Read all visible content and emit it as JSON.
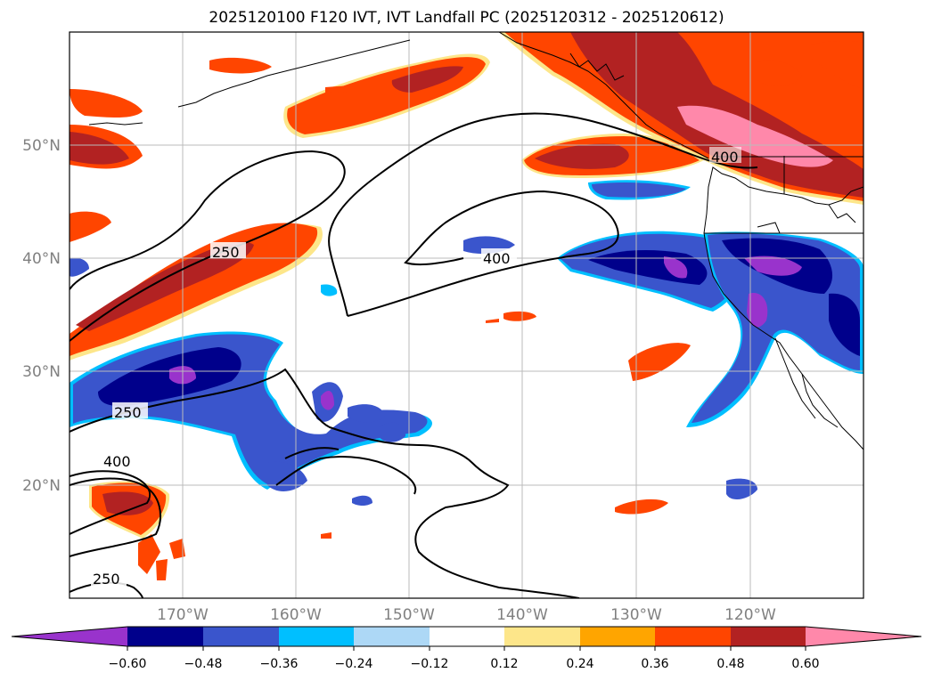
{
  "title": "2025120100 F120 IVT, IVT Landfall PC (2025120312 - 2025120612)",
  "lat_labels": [
    "50°N",
    "40°N",
    "30°N",
    "20°N"
  ],
  "lon_labels": [
    "170°W",
    "160°W",
    "150°W",
    "140°W",
    "130°W",
    "120°W"
  ],
  "contour_labels": [
    "250",
    "400",
    "250",
    "400",
    "250",
    "400"
  ],
  "colorbar": {
    "tick_labels": [
      "−0.60",
      "−0.48",
      "−0.36",
      "−0.24",
      "−0.12",
      "0.12",
      "0.24",
      "0.36",
      "0.48",
      "0.60"
    ],
    "colors": [
      "#9933cc",
      "#00008b",
      "#3a55cc",
      "#00bfff",
      "#add8f6",
      "#ffffff",
      "#fde68a",
      "#ffa500",
      "#ff4500",
      "#b22222",
      "#ff88aa"
    ]
  }
}
